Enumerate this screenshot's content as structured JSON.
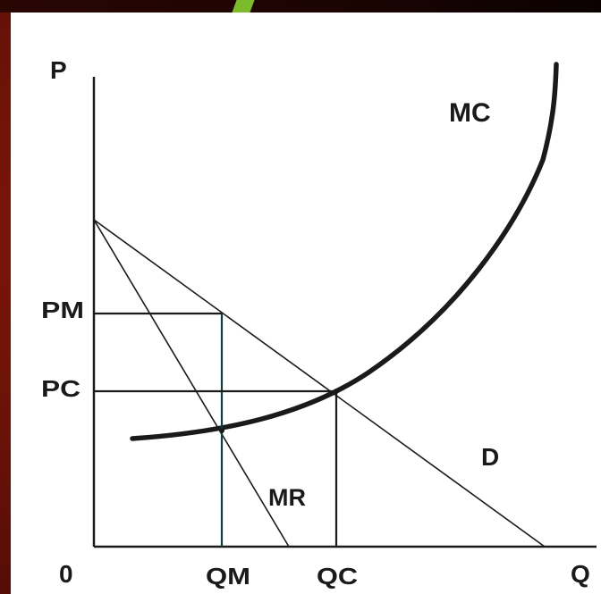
{
  "diagram": {
    "axis_labels": {
      "vertical": "P",
      "horizontal": "Q",
      "origin": "0"
    },
    "price_labels": {
      "monopoly": "PM",
      "competitive": "PC"
    },
    "quantity_labels": {
      "monopoly": "QM",
      "competitive": "QC"
    },
    "curve_labels": {
      "marginal_cost": "MC",
      "demand": "D",
      "marginal_revenue": "MR"
    }
  },
  "colors": {
    "background": "#6b1208",
    "panel": "#ffffff",
    "ink": "#1a1a1a",
    "accent": "#7dbb2e",
    "qm_line": "#123c3c"
  }
}
